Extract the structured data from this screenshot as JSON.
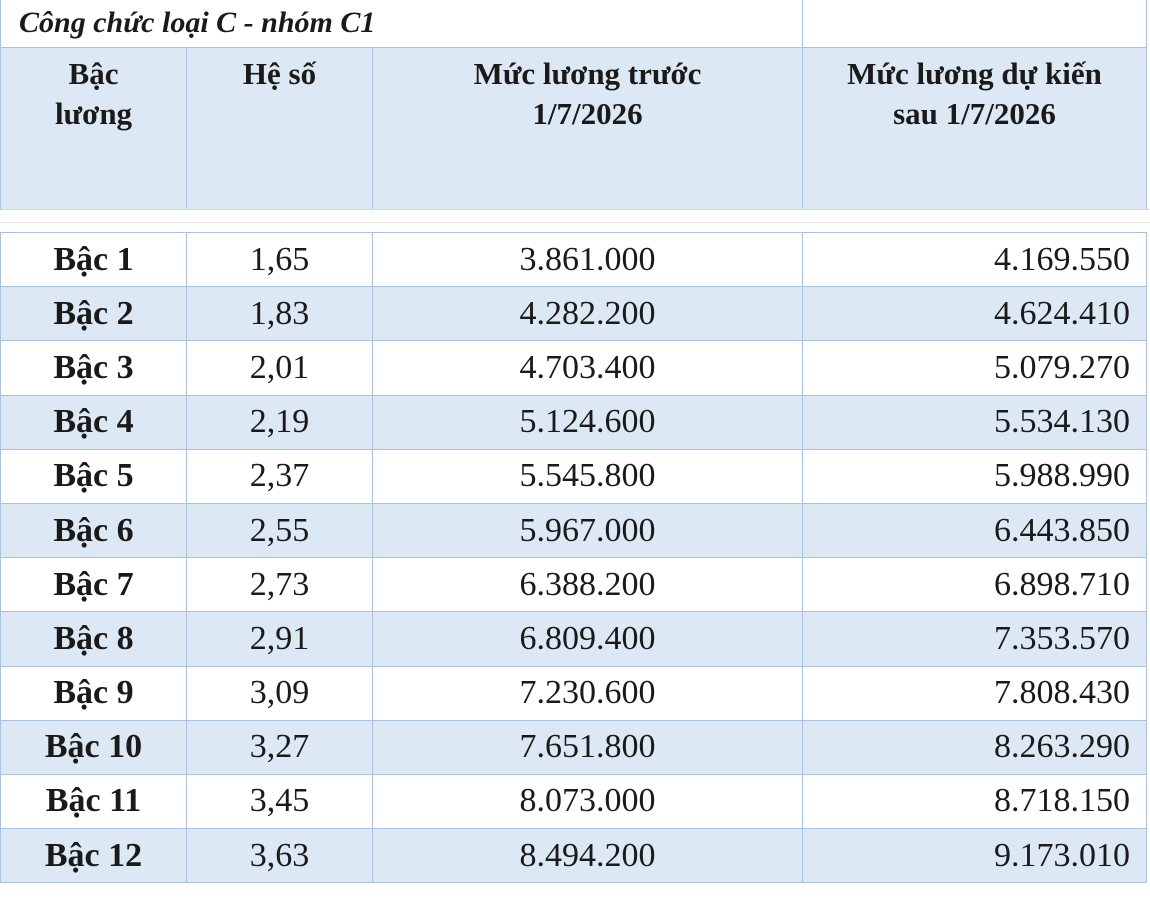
{
  "table_title": "Công chức loại C - nhóm C1",
  "headers": {
    "bac_line1": "Bậc",
    "bac_line2": "lương",
    "he_so": "Hệ số",
    "truoc_line1": "Mức lương trước",
    "truoc_line2": "1/7/2026",
    "sau_line1": "Mức lương dự kiến",
    "sau_line2": "sau 1/7/2026"
  },
  "rows": [
    {
      "bac": "Bậc 1",
      "he_so": "1,65",
      "truoc": "3.861.000",
      "sau": "4.169.550"
    },
    {
      "bac": "Bậc 2",
      "he_so": "1,83",
      "truoc": "4.282.200",
      "sau": "4.624.410"
    },
    {
      "bac": "Bậc 3",
      "he_so": "2,01",
      "truoc": "4.703.400",
      "sau": "5.079.270"
    },
    {
      "bac": "Bậc 4",
      "he_so": "2,19",
      "truoc": "5.124.600",
      "sau": "5.534.130"
    },
    {
      "bac": "Bậc 5",
      "he_so": "2,37",
      "truoc": "5.545.800",
      "sau": "5.988.990"
    },
    {
      "bac": "Bậc 6",
      "he_so": "2,55",
      "truoc": "5.967.000",
      "sau": "6.443.850"
    },
    {
      "bac": "Bậc 7",
      "he_so": "2,73",
      "truoc": "6.388.200",
      "sau": "6.898.710"
    },
    {
      "bac": "Bậc 8",
      "he_so": "2,91",
      "truoc": "6.809.400",
      "sau": "7.353.570"
    },
    {
      "bac": "Bậc 9",
      "he_so": "3,09",
      "truoc": "7.230.600",
      "sau": "7.808.430"
    },
    {
      "bac": "Bậc 10",
      "he_so": "3,27",
      "truoc": "7.651.800",
      "sau": "8.263.290"
    },
    {
      "bac": "Bậc 11",
      "he_so": "3,45",
      "truoc": "8.073.000",
      "sau": "8.718.150"
    },
    {
      "bac": "Bậc 12",
      "he_so": "3,63",
      "truoc": "8.494.200",
      "sau": "9.173.010"
    }
  ],
  "colors": {
    "row_band": "#dde8f5",
    "border": "#a9c1e3"
  }
}
